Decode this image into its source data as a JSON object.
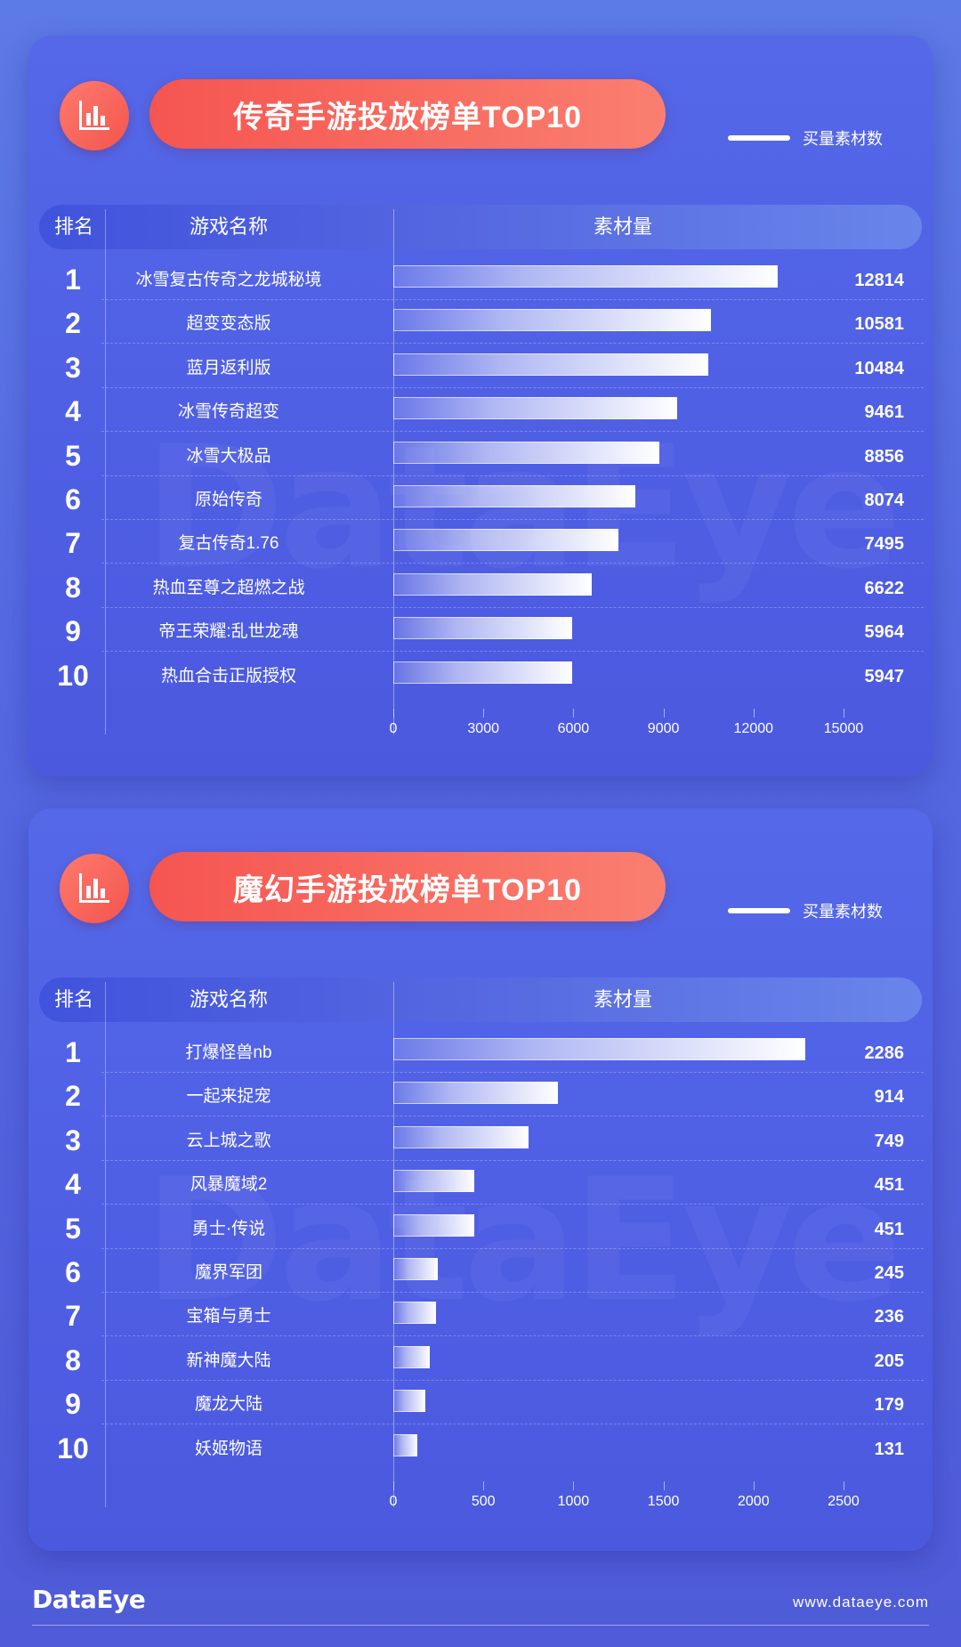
{
  "chart_data": [
    {
      "type": "bar",
      "title": "传奇手游投放榜单TOP10",
      "legend": "买量素材数",
      "header": {
        "rank": "排名",
        "name": "游戏名称",
        "value": "素材量"
      },
      "ranks": [
        "1",
        "2",
        "3",
        "4",
        "5",
        "6",
        "7",
        "8",
        "9",
        "10"
      ],
      "categories": [
        "冰雪复古传奇之龙城秘境",
        "超变变态版",
        "蓝月返利版",
        "冰雪传奇超变",
        "冰雪大极品",
        "原始传奇",
        "复古传奇1.76",
        "热血至尊之超燃之战",
        "帝王荣耀:乱世龙魂",
        "热血合击正版授权"
      ],
      "values": [
        12814,
        10581,
        10484,
        9461,
        8856,
        8074,
        7495,
        6622,
        5964,
        5947
      ],
      "xlim": [
        0,
        15000
      ],
      "ticks": [
        "0",
        "3000",
        "6000",
        "9000",
        "12000",
        "15000"
      ]
    },
    {
      "type": "bar",
      "title": "魔幻手游投放榜单TOP10",
      "legend": "买量素材数",
      "header": {
        "rank": "排名",
        "name": "游戏名称",
        "value": "素材量"
      },
      "ranks": [
        "1",
        "2",
        "3",
        "4",
        "5",
        "6",
        "7",
        "8",
        "9",
        "10"
      ],
      "categories": [
        "打爆怪兽nb",
        "一起来捉宠",
        "云上城之歌",
        "风暴魔域2",
        "勇士·传说",
        "魔界军团",
        "宝箱与勇士",
        "新神魔大陆",
        "魔龙大陆",
        "妖姬物语"
      ],
      "values": [
        2286,
        914,
        749,
        451,
        451,
        245,
        236,
        205,
        179,
        131
      ],
      "xlim": [
        0,
        2500
      ],
      "ticks": [
        "0",
        "500",
        "1000",
        "1500",
        "2000",
        "2500"
      ]
    }
  ],
  "watermark": "DataEye",
  "footer": {
    "logo": "DataEye",
    "url": "www.dataeye.com"
  },
  "colors": {
    "accent": "#f55550",
    "background": "#5569e2"
  },
  "icons": {
    "title_icon": "bar-chart-icon"
  }
}
